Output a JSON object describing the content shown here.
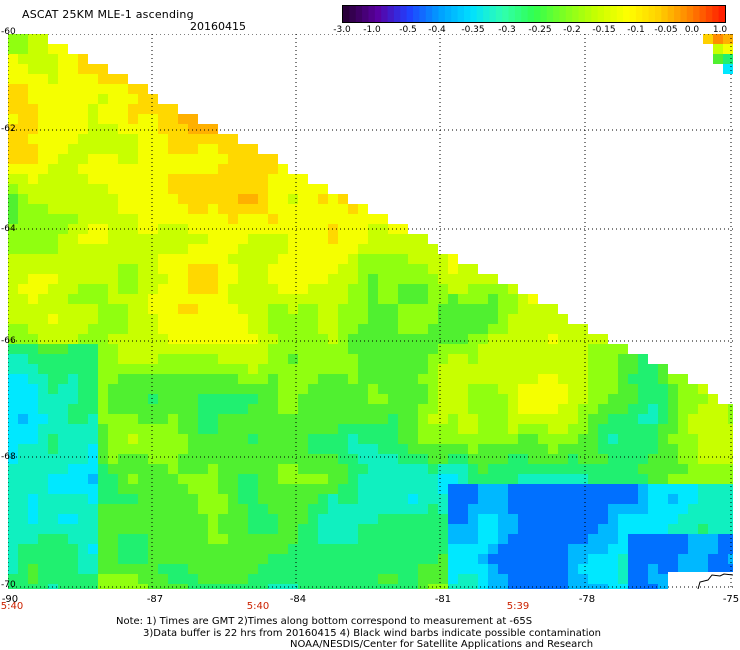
{
  "header": {
    "title": "ASCAT 25KM MLE-1 ascending",
    "date": "20160415"
  },
  "colorbar": {
    "labels": [
      "-3.0",
      "-1.0",
      "-0.5",
      "-0.4",
      "-0.35",
      "-0.3",
      "-0.25",
      "-0.2",
      "-0.15",
      "-0.1",
      "-0.05",
      "0.0",
      "1.0"
    ],
    "colors": [
      "#2a003a",
      "#5a00a0",
      "#2040ff",
      "#00a0ff",
      "#00e0ff",
      "#30ffb0",
      "#30ff50",
      "#80ff20",
      "#c8ff00",
      "#ffff00",
      "#ffd000",
      "#ff8000",
      "#ff2000"
    ]
  },
  "map": {
    "lat_labels": [
      "-60",
      "-62",
      "-64",
      "-66",
      "-68",
      "-70"
    ],
    "lon_labels": [
      "-90",
      "-87",
      "-84",
      "-81",
      "-78",
      "-75"
    ],
    "time_labels": [
      "5:40",
      "5:40",
      "5:39"
    ]
  },
  "footer": {
    "note_line1": "Note: 1) Times are GMT 2)Times along bottom correspond to measurement at -65S",
    "note_line2": "3)Data buffer is 22 hrs from 20160415 4) Black wind barbs indicate possible contamination",
    "note_line3": "NOAA/NESDIS/Center for Satellite Applications and Research"
  }
}
